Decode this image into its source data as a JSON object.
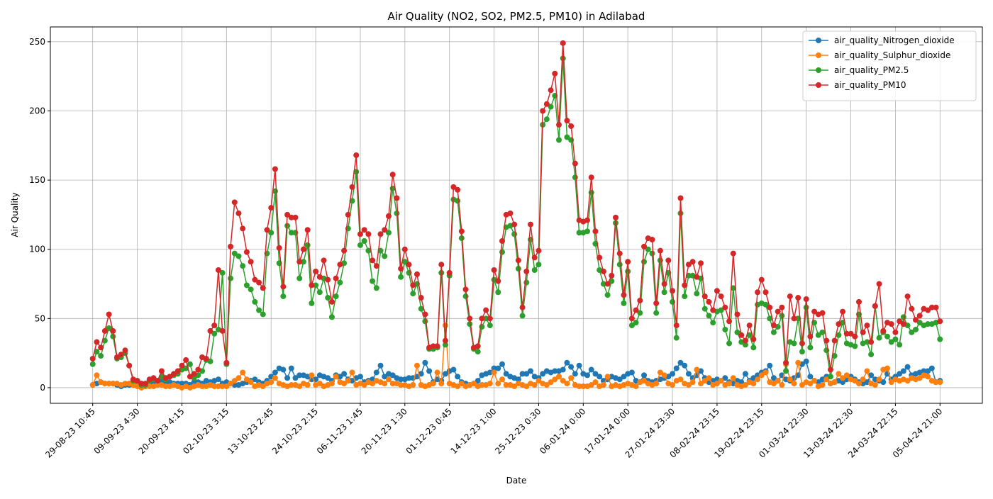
{
  "chart_data": {
    "type": "line",
    "title": "Air Quality (NO2, SO2, PM2.5, PM10) in Adilabad",
    "x_label": "Date",
    "y_label": "Air Quality",
    "categories": [
      "29-08-23 10:45",
      null,
      null,
      null,
      null,
      null,
      null,
      null,
      null,
      null,
      null,
      "09-09-23 4:30",
      null,
      null,
      null,
      null,
      null,
      null,
      null,
      null,
      null,
      null,
      "20-09-23 4:15",
      null,
      null,
      null,
      null,
      null,
      null,
      null,
      null,
      null,
      null,
      "02-10-23 3:15",
      null,
      null,
      null,
      null,
      null,
      null,
      null,
      null,
      null,
      null,
      "13-10-23 2:45",
      null,
      null,
      null,
      null,
      null,
      null,
      null,
      null,
      null,
      null,
      "24-10-23 2:15",
      null,
      null,
      null,
      null,
      null,
      null,
      null,
      null,
      null,
      null,
      "06-11-23 1:45",
      null,
      null,
      null,
      null,
      null,
      null,
      null,
      null,
      null,
      null,
      "20-11-23 1:30",
      null,
      null,
      null,
      null,
      null,
      null,
      null,
      null,
      null,
      null,
      "01-12-23 0:45",
      null,
      null,
      null,
      null,
      null,
      null,
      null,
      null,
      null,
      null,
      "14-12-23 1:00",
      null,
      null,
      null,
      null,
      null,
      null,
      null,
      null,
      null,
      null,
      "25-12-23 0:30",
      null,
      null,
      null,
      null,
      null,
      null,
      null,
      null,
      null,
      null,
      "06-01-24 0:00",
      null,
      null,
      null,
      null,
      null,
      null,
      null,
      null,
      null,
      null,
      "17-01-24 0:00",
      null,
      null,
      null,
      null,
      null,
      null,
      null,
      null,
      null,
      null,
      "27-01-24 23:30",
      null,
      null,
      null,
      null,
      null,
      null,
      null,
      null,
      null,
      null,
      "08-02-24 23:15",
      null,
      null,
      null,
      null,
      null,
      null,
      null,
      null,
      null,
      null,
      "19-02-24 23:15",
      null,
      null,
      null,
      null,
      null,
      null,
      null,
      null,
      null,
      null,
      "01-03-24 22:30",
      null,
      null,
      null,
      null,
      null,
      null,
      null,
      null,
      null,
      null,
      "13-03-24 22:30",
      null,
      null,
      null,
      null,
      null,
      null,
      null,
      null,
      null,
      null,
      "24-03-24 22:15",
      null,
      null,
      null,
      null,
      null,
      null,
      null,
      null,
      null,
      null,
      "05-04-24 21:00"
    ],
    "series": [
      {
        "name": "air_quality_Nitrogen_dioxide",
        "color": "#1f77b4",
        "values": [
          2,
          3,
          4,
          3,
          3,
          3,
          2,
          1,
          2,
          2,
          2,
          2,
          1,
          1,
          2,
          3,
          4,
          5,
          4,
          4,
          3,
          3,
          3,
          3,
          2,
          4,
          4,
          3,
          5,
          4,
          5,
          6,
          3,
          4,
          3,
          2,
          2,
          3,
          4,
          5,
          6,
          4,
          3,
          5,
          8,
          11,
          14,
          13,
          7,
          14,
          7,
          9,
          9,
          8,
          6,
          6,
          9,
          8,
          7,
          5,
          9,
          8,
          10,
          6,
          5,
          7,
          8,
          4,
          5,
          6,
          11,
          16,
          8,
          10,
          9,
          7,
          6,
          6,
          7,
          7,
          8,
          10,
          18,
          12,
          4,
          6,
          5,
          10,
          12,
          13,
          8,
          4,
          3,
          2,
          3,
          5,
          9,
          10,
          11,
          14,
          14,
          17,
          10,
          8,
          7,
          6,
          10,
          10,
          12,
          8,
          7,
          10,
          12,
          11,
          12,
          12,
          13,
          18,
          15,
          10,
          16,
          10,
          9,
          13,
          10,
          8,
          5,
          6,
          8,
          7,
          6,
          8,
          10,
          11,
          5,
          4,
          9,
          5,
          4,
          5,
          6,
          7,
          8,
          10,
          14,
          18,
          16,
          10,
          7,
          9,
          12,
          7,
          4,
          5,
          6,
          5,
          7,
          4,
          3,
          5,
          4,
          10,
          5,
          7,
          9,
          11,
          12,
          16,
          7,
          5,
          9,
          6,
          5,
          7,
          9,
          17,
          19,
          8,
          5,
          4,
          6,
          8,
          3,
          4,
          5,
          4,
          6,
          8,
          6,
          4,
          3,
          4,
          9,
          6,
          5,
          4,
          10,
          6,
          8,
          10,
          12,
          15,
          9,
          10,
          11,
          12,
          12,
          14,
          4,
          5
        ]
      },
      {
        "name": "air_quality_Sulphur_dioxide",
        "color": "#ff7f0e",
        "values": [
          2,
          9,
          4,
          3,
          3,
          3,
          3,
          2,
          3,
          3,
          2,
          1,
          0,
          1,
          1,
          1,
          2,
          2,
          1,
          1,
          2,
          1,
          0,
          1,
          0,
          1,
          2,
          1,
          1,
          2,
          1,
          1,
          1,
          1,
          3,
          5,
          7,
          11,
          6,
          4,
          1,
          2,
          1,
          3,
          4,
          7,
          3,
          2,
          1,
          2,
          2,
          1,
          3,
          2,
          9,
          2,
          3,
          1,
          2,
          3,
          8,
          4,
          3,
          5,
          11,
          2,
          3,
          2,
          4,
          3,
          5,
          4,
          3,
          6,
          3,
          3,
          2,
          2,
          1,
          2,
          16,
          2,
          1,
          2,
          3,
          11,
          3,
          45,
          3,
          2,
          1,
          3,
          1,
          2,
          3,
          1,
          2,
          2,
          3,
          11,
          3,
          6,
          2,
          2,
          1,
          3,
          2,
          1,
          3,
          2,
          5,
          3,
          2,
          4,
          6,
          8,
          5,
          3,
          7,
          2,
          1,
          1,
          1,
          2,
          4,
          1,
          2,
          8,
          1,
          2,
          1,
          2,
          3,
          2,
          1,
          4,
          5,
          3,
          2,
          3,
          11,
          9,
          3,
          2,
          5,
          6,
          3,
          2,
          4,
          13,
          3,
          5,
          7,
          2,
          3,
          5,
          2,
          3,
          7,
          2,
          1,
          2,
          4,
          3,
          6,
          9,
          11,
          4,
          3,
          5,
          2,
          17,
          6,
          3,
          18,
          2,
          4,
          3,
          5,
          1,
          2,
          6,
          3,
          4,
          10,
          7,
          9,
          6,
          5,
          3,
          6,
          12,
          3,
          2,
          6,
          13,
          14,
          4,
          6,
          5,
          6,
          5,
          7,
          6,
          7,
          9,
          8,
          5,
          4,
          4
        ]
      },
      {
        "name": "air_quality_PM2.5",
        "color": "#2ca02c",
        "values": [
          17,
          26,
          23,
          34,
          43,
          37,
          21,
          22,
          25,
          16,
          5,
          5,
          2,
          2,
          5,
          6,
          5,
          8,
          6,
          8,
          9,
          10,
          13,
          14,
          17,
          7,
          9,
          12,
          20,
          19,
          39,
          42,
          83,
          17,
          79,
          97,
          95,
          88,
          74,
          71,
          62,
          56,
          53,
          97,
          112,
          142,
          90,
          66,
          117,
          112,
          112,
          79,
          91,
          103,
          61,
          74,
          69,
          79,
          65,
          51,
          66,
          76,
          90,
          115,
          135,
          156,
          103,
          106,
          99,
          77,
          72,
          99,
          95,
          112,
          144,
          126,
          80,
          91,
          83,
          68,
          75,
          57,
          48,
          28,
          28,
          29,
          83,
          31,
          81,
          136,
          135,
          108,
          66,
          46,
          28,
          26,
          44,
          50,
          45,
          78,
          69,
          98,
          116,
          117,
          111,
          86,
          52,
          76,
          107,
          85,
          89,
          190,
          194,
          203,
          211,
          179,
          238,
          181,
          179,
          152,
          112,
          112,
          113,
          141,
          104,
          85,
          75,
          67,
          77,
          119,
          89,
          61,
          84,
          45,
          47,
          54,
          91,
          100,
          97,
          54,
          92,
          69,
          83,
          62,
          36,
          126,
          66,
          81,
          81,
          68,
          79,
          57,
          52,
          47,
          55,
          56,
          42,
          32,
          72,
          40,
          33,
          31,
          38,
          29,
          60,
          61,
          60,
          50,
          40,
          44,
          52,
          12,
          33,
          32,
          50,
          26,
          58,
          29,
          47,
          38,
          40,
          27,
          8,
          23,
          38,
          47,
          32,
          31,
          30,
          53,
          32,
          33,
          24,
          59,
          36,
          40,
          37,
          33,
          35,
          31,
          51,
          45,
          40,
          42,
          47,
          45,
          46,
          46,
          47,
          35
        ]
      },
      {
        "name": "air_quality_PM10",
        "color": "#d62728",
        "values": [
          21,
          33,
          29,
          41,
          53,
          41,
          22,
          24,
          27,
          16,
          6,
          5,
          3,
          3,
          6,
          7,
          5,
          12,
          7,
          8,
          10,
          12,
          16,
          20,
          8,
          10,
          13,
          22,
          21,
          41,
          45,
          85,
          41,
          18,
          102,
          134,
          126,
          115,
          98,
          91,
          78,
          76,
          72,
          114,
          130,
          158,
          101,
          73,
          125,
          123,
          123,
          91,
          100,
          114,
          74,
          84,
          80,
          92,
          78,
          62,
          79,
          89,
          99,
          125,
          145,
          168,
          111,
          114,
          111,
          92,
          88,
          111,
          114,
          124,
          154,
          137,
          86,
          100,
          89,
          74,
          82,
          65,
          53,
          29,
          30,
          30,
          89,
          34,
          83,
          145,
          143,
          113,
          71,
          50,
          29,
          30,
          50,
          56,
          50,
          85,
          77,
          106,
          125,
          126,
          118,
          92,
          58,
          84,
          118,
          94,
          99,
          200,
          205,
          215,
          227,
          190,
          249,
          193,
          189,
          162,
          121,
          120,
          121,
          152,
          113,
          94,
          84,
          75,
          81,
          123,
          97,
          67,
          91,
          50,
          56,
          63,
          102,
          108,
          107,
          61,
          99,
          75,
          92,
          70,
          45,
          137,
          74,
          89,
          91,
          80,
          90,
          66,
          62,
          56,
          70,
          66,
          58,
          48,
          97,
          53,
          38,
          34,
          45,
          35,
          69,
          78,
          69,
          58,
          45,
          55,
          58,
          18,
          66,
          50,
          65,
          32,
          64,
          37,
          55,
          53,
          54,
          34,
          13,
          34,
          46,
          55,
          39,
          39,
          37,
          62,
          40,
          45,
          33,
          59,
          75,
          41,
          47,
          46,
          40,
          48,
          46,
          66,
          57,
          49,
          52,
          57,
          56,
          58,
          58,
          48
        ]
      }
    ],
    "ylim": [
      -11.3,
      260.7
    ],
    "yticks": [
      0,
      50,
      100,
      150,
      200,
      250
    ],
    "grid": true,
    "legend": "upper right"
  }
}
